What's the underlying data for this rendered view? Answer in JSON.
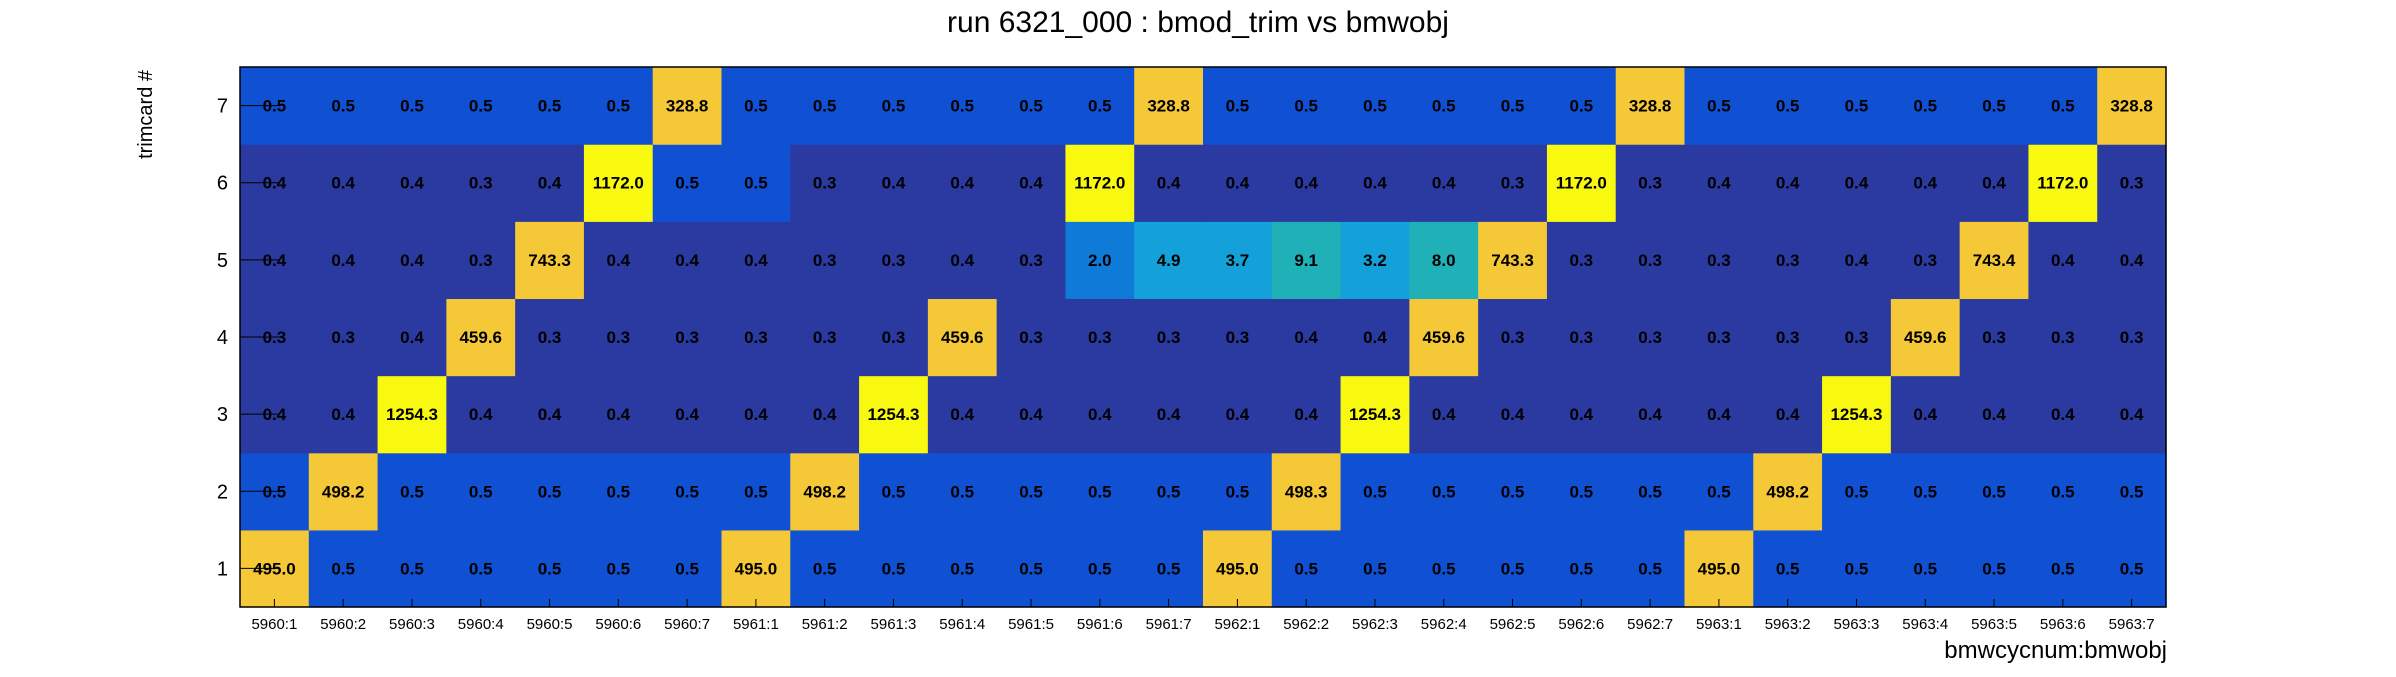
{
  "chart_data": {
    "type": "heatmap",
    "title": "run 6321_000 : bmod_trim vs bmwobj",
    "xlabel": "bmwcycnum:bmwobj",
    "ylabel": "trimcard #",
    "x_categories": [
      "5960:1",
      "5960:2",
      "5960:3",
      "5960:4",
      "5960:5",
      "5960:6",
      "5960:7",
      "5961:1",
      "5961:2",
      "5961:3",
      "5961:4",
      "5961:5",
      "5961:6",
      "5961:7",
      "5962:1",
      "5962:2",
      "5962:3",
      "5962:4",
      "5962:5",
      "5962:6",
      "5962:7",
      "5963:1",
      "5963:2",
      "5963:3",
      "5963:4",
      "5963:5",
      "5963:6",
      "5963:7"
    ],
    "y_categories": [
      "1",
      "2",
      "3",
      "4",
      "5",
      "6",
      "7"
    ],
    "values": [
      [
        "495.0",
        "0.5",
        "0.5",
        "0.5",
        "0.5",
        "0.5",
        "0.5",
        "495.0",
        "0.5",
        "0.5",
        "0.5",
        "0.5",
        "0.5",
        "0.5",
        "495.0",
        "0.5",
        "0.5",
        "0.5",
        "0.5",
        "0.5",
        "0.5",
        "495.0",
        "0.5",
        "0.5",
        "0.5",
        "0.5",
        "0.5",
        "0.5"
      ],
      [
        "0.5",
        "498.2",
        "0.5",
        "0.5",
        "0.5",
        "0.5",
        "0.5",
        "0.5",
        "498.2",
        "0.5",
        "0.5",
        "0.5",
        "0.5",
        "0.5",
        "0.5",
        "498.3",
        "0.5",
        "0.5",
        "0.5",
        "0.5",
        "0.5",
        "0.5",
        "498.2",
        "0.5",
        "0.5",
        "0.5",
        "0.5",
        "0.5"
      ],
      [
        "0.4",
        "0.4",
        "1254.3",
        "0.4",
        "0.4",
        "0.4",
        "0.4",
        "0.4",
        "0.4",
        "1254.3",
        "0.4",
        "0.4",
        "0.4",
        "0.4",
        "0.4",
        "0.4",
        "1254.3",
        "0.4",
        "0.4",
        "0.4",
        "0.4",
        "0.4",
        "0.4",
        "1254.3",
        "0.4",
        "0.4",
        "0.4",
        "0.4"
      ],
      [
        "0.3",
        "0.3",
        "0.4",
        "459.6",
        "0.3",
        "0.3",
        "0.3",
        "0.3",
        "0.3",
        "0.3",
        "459.6",
        "0.3",
        "0.3",
        "0.3",
        "0.3",
        "0.4",
        "0.4",
        "459.6",
        "0.3",
        "0.3",
        "0.3",
        "0.3",
        "0.3",
        "0.3",
        "459.6",
        "0.3",
        "0.3",
        "0.3"
      ],
      [
        "0.4",
        "0.4",
        "0.4",
        "0.3",
        "743.3",
        "0.4",
        "0.4",
        "0.4",
        "0.3",
        "0.3",
        "0.4",
        "0.3",
        "2.0",
        "4.9",
        "3.7",
        "9.1",
        "3.2",
        "8.0",
        "743.3",
        "0.3",
        "0.3",
        "0.3",
        "0.3",
        "0.4",
        "0.3",
        "743.4",
        "0.4",
        "0.4"
      ],
      [
        "0.4",
        "0.4",
        "0.4",
        "0.3",
        "0.4",
        "1172.0",
        "0.5",
        "0.5",
        "0.3",
        "0.4",
        "0.4",
        "0.4",
        "1172.0",
        "0.4",
        "0.4",
        "0.4",
        "0.4",
        "0.4",
        "0.3",
        "1172.0",
        "0.3",
        "0.4",
        "0.4",
        "0.4",
        "0.4",
        "0.4",
        "1172.0",
        "0.3"
      ],
      [
        "0.5",
        "0.5",
        "0.5",
        "0.5",
        "0.5",
        "0.5",
        "328.8",
        "0.5",
        "0.5",
        "0.5",
        "0.5",
        "0.5",
        "0.5",
        "328.8",
        "0.5",
        "0.5",
        "0.5",
        "0.5",
        "0.5",
        "0.5",
        "328.8",
        "0.5",
        "0.5",
        "0.5",
        "0.5",
        "0.5",
        "0.5",
        "328.8"
      ]
    ],
    "colors": {
      "very_low": "#2a3aa0",
      "low": "#1050d2",
      "mid_low": "#0f7ad8",
      "mid": "#14a0d8",
      "mid_high": "#1fb0b8",
      "high": "#f5c837",
      "max": "#f9f90f"
    },
    "grid": false,
    "legend": "none"
  }
}
